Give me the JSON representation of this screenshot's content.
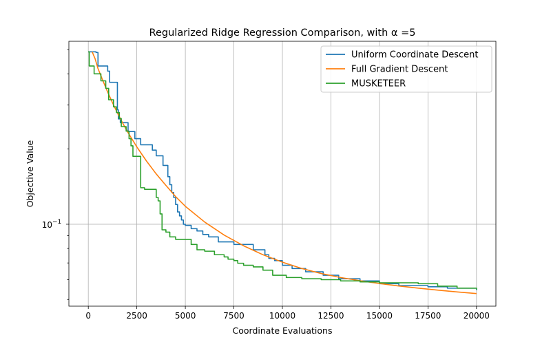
{
  "chart_data": {
    "type": "line",
    "title": "Regularized Ridge Regression Comparison, with α =5",
    "xlabel": "Coordinate Evaluations",
    "ylabel": "Objective Value",
    "xlim": [
      -1000,
      21000
    ],
    "ylim": [
      0.047,
      0.54
    ],
    "yscale": "log",
    "grid": true,
    "legend_position": "top-right",
    "x_ticks": [
      {
        "value": 0,
        "label": "0"
      },
      {
        "value": 2500,
        "label": "2500"
      },
      {
        "value": 5000,
        "label": "5000"
      },
      {
        "value": 7500,
        "label": "7500"
      },
      {
        "value": 10000,
        "label": "10000"
      },
      {
        "value": 12500,
        "label": "12500"
      },
      {
        "value": 15000,
        "label": "15000"
      },
      {
        "value": 17500,
        "label": "17500"
      },
      {
        "value": 20000,
        "label": "20000"
      }
    ],
    "y_ticks": [
      {
        "value": 0.1,
        "label": "10",
        "exponent": "−1"
      }
    ],
    "y_minor_ticks": [
      0.05,
      0.06,
      0.07,
      0.08,
      0.09,
      0.2,
      0.3,
      0.4,
      0.5
    ],
    "series": [
      {
        "name": "Uniform Coordinate Descent",
        "color": "#1f77b4",
        "step": true,
        "x": [
          0,
          400,
          500,
          700,
          1000,
          1100,
          1400,
          1500,
          1550,
          1650,
          2050,
          2400,
          2700,
          3300,
          3500,
          3850,
          4100,
          4200,
          4300,
          4400,
          4500,
          4600,
          4700,
          4800,
          4900,
          5000,
          5300,
          5600,
          5900,
          6200,
          6700,
          7500,
          8500,
          9100,
          9300,
          9600,
          10000,
          10500,
          11200,
          12100,
          12900,
          14000,
          15000,
          16000,
          17500,
          18500,
          20000
        ],
        "y": [
          0.49,
          0.487,
          0.43,
          0.43,
          0.41,
          0.37,
          0.37,
          0.287,
          0.264,
          0.255,
          0.235,
          0.22,
          0.208,
          0.198,
          0.188,
          0.172,
          0.155,
          0.144,
          0.134,
          0.128,
          0.12,
          0.112,
          0.108,
          0.104,
          0.1,
          0.099,
          0.096,
          0.094,
          0.091,
          0.089,
          0.085,
          0.083,
          0.079,
          0.0755,
          0.073,
          0.0715,
          0.0685,
          0.0665,
          0.0645,
          0.0625,
          0.0605,
          0.0593,
          0.0578,
          0.0568,
          0.0562,
          0.0555,
          0.0545
        ]
      },
      {
        "name": "Full Gradient Descent",
        "color": "#ff7f0e",
        "step": false,
        "x": [
          200,
          350,
          500,
          750,
          1000,
          1250,
          1500,
          1750,
          2000,
          2500,
          3000,
          3500,
          4000,
          4500,
          5000,
          6000,
          7000,
          8000,
          9000,
          10000,
          11000,
          12000,
          13000,
          14000,
          15000,
          16000,
          17000,
          18000,
          19000,
          20000
        ],
        "y": [
          0.49,
          0.46,
          0.42,
          0.376,
          0.338,
          0.306,
          0.279,
          0.256,
          0.236,
          0.204,
          0.179,
          0.159,
          0.143,
          0.129,
          0.118,
          0.102,
          0.0905,
          0.082,
          0.0755,
          0.0705,
          0.0665,
          0.0635,
          0.0612,
          0.0594,
          0.0579,
          0.0566,
          0.0555,
          0.0545,
          0.0536,
          0.0528
        ]
      },
      {
        "name": "MUSKETEER",
        "color": "#2ca02c",
        "step": true,
        "x": [
          0,
          50,
          300,
          650,
          900,
          1050,
          1300,
          1450,
          1600,
          1700,
          1950,
          2100,
          2200,
          2300,
          2700,
          2900,
          3500,
          3600,
          3700,
          3800,
          4000,
          4200,
          4500,
          5300,
          5600,
          6000,
          6500,
          7000,
          7200,
          7500,
          7700,
          8000,
          8500,
          9000,
          9500,
          10200,
          11000,
          12000,
          13000,
          14000,
          15000,
          17000,
          18000,
          19000,
          20000
        ],
        "y": [
          0.49,
          0.43,
          0.4,
          0.375,
          0.35,
          0.315,
          0.295,
          0.28,
          0.265,
          0.246,
          0.236,
          0.22,
          0.206,
          0.187,
          0.14,
          0.138,
          0.128,
          0.124,
          0.11,
          0.095,
          0.093,
          0.089,
          0.087,
          0.083,
          0.079,
          0.078,
          0.0755,
          0.074,
          0.0725,
          0.0715,
          0.0698,
          0.0685,
          0.0675,
          0.0655,
          0.0625,
          0.0612,
          0.0605,
          0.06,
          0.0593,
          0.0588,
          0.0583,
          0.0578,
          0.0565,
          0.0555,
          0.0548
        ]
      }
    ]
  }
}
